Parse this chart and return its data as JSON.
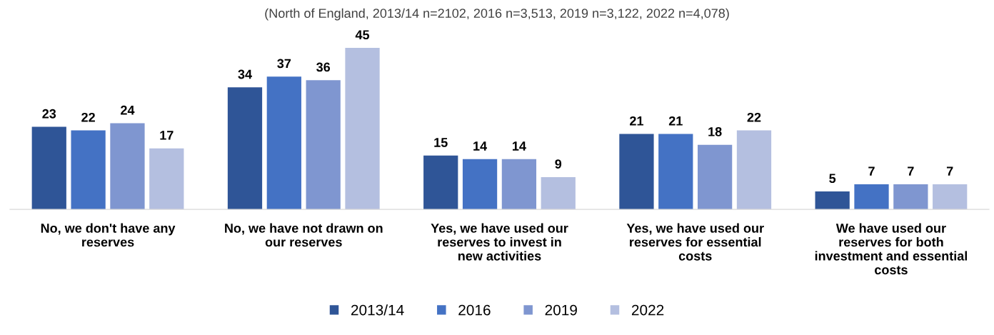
{
  "chart_data": {
    "type": "bar",
    "subtitle": "(North of England, 2013/14 n=2102, 2016 n=3,513, 2019 n=3,122, 2022 n=4,078)",
    "categories": [
      "No, we don't have any reserves",
      "No, we have not drawn on our reserves",
      "Yes, we have used our reserves to invest in new activities",
      "Yes, we have used our reserves for essential costs",
      "We have used our reserves for both investment and essential costs"
    ],
    "series": [
      {
        "name": "2013/14",
        "color": "#2f5597",
        "values": [
          23,
          34,
          15,
          21,
          5
        ]
      },
      {
        "name": "2016",
        "color": "#4472c4",
        "values": [
          22,
          37,
          14,
          21,
          7
        ]
      },
      {
        "name": "2019",
        "color": "#7f96d0",
        "values": [
          24,
          36,
          14,
          18,
          7
        ]
      },
      {
        "name": "2022",
        "color": "#b4bfe0",
        "values": [
          17,
          45,
          9,
          22,
          7
        ]
      }
    ],
    "data_labels": true,
    "legend": "bottom",
    "grid": false
  }
}
